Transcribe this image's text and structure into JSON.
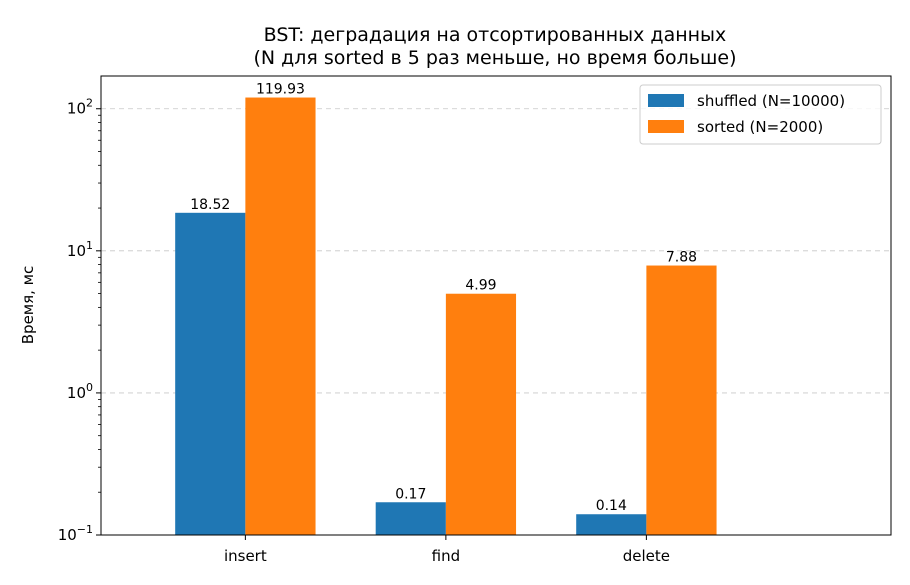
{
  "chart_data": {
    "type": "bar",
    "title_line1": "BST: деградация на отсортированных данных",
    "title_line2": "(N для sorted в 5 раз меньше, но время больше)",
    "xlabel": "",
    "ylabel": "Время, мс",
    "yscale": "log",
    "ylim": [
      0.1,
      170
    ],
    "yticks": [
      {
        "value": 0.1,
        "base": "10",
        "exp": "−1"
      },
      {
        "value": 1,
        "base": "10",
        "exp": "0"
      },
      {
        "value": 10,
        "base": "10",
        "exp": "1"
      },
      {
        "value": 100,
        "base": "10",
        "exp": "2"
      }
    ],
    "grid": "y-major-dashed",
    "legend_position": "top-right",
    "categories": [
      "insert",
      "find",
      "delete"
    ],
    "series": [
      {
        "name": "shuffled (N=10000)",
        "color": "#1f77b4",
        "values": [
          18.52,
          0.17,
          0.14
        ],
        "labels": [
          "18.52",
          "0.17",
          "0.14"
        ]
      },
      {
        "name": "sorted (N=2000)",
        "color": "#ff7f0e",
        "values": [
          119.93,
          4.99,
          7.88
        ],
        "labels": [
          "119.93",
          "4.99",
          "7.88"
        ]
      }
    ]
  }
}
